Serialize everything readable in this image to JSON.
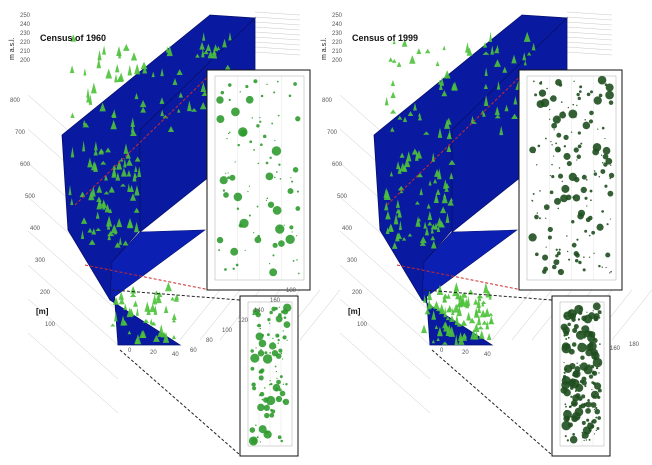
{
  "panels": [
    {
      "id": "p1960",
      "title": "Census of 1960",
      "tree_color": "#4cc23a",
      "inset_color": "#2f9b2f",
      "inset_density": 0.55
    },
    {
      "id": "p1999",
      "title": "Census of 1999",
      "tree_color": "#4cc23a",
      "inset_color": "#1f4f1f",
      "inset_density": 1.0
    }
  ],
  "axes": {
    "elevation_label": "m a.s.l.",
    "elevation_ticks": [
      "250",
      "240",
      "230",
      "220",
      "210",
      "200"
    ],
    "distance_label": "[m]",
    "distance_ticks": [
      "800",
      "700",
      "600",
      "500",
      "400",
      "300",
      "200",
      "100"
    ],
    "width_ticks": [
      "0",
      "20",
      "40"
    ],
    "far_ticks_left": [
      "60",
      "80",
      "100",
      "120",
      "140",
      "160",
      "180"
    ],
    "far_ticks_right": [
      "160",
      "180"
    ]
  },
  "colors": {
    "surface": "#0a1aa0",
    "surface_edge": "#06106e",
    "upper_connector": "#cc2a2a",
    "lower_connector": "#222222",
    "grid": "#c8c8c8"
  }
}
